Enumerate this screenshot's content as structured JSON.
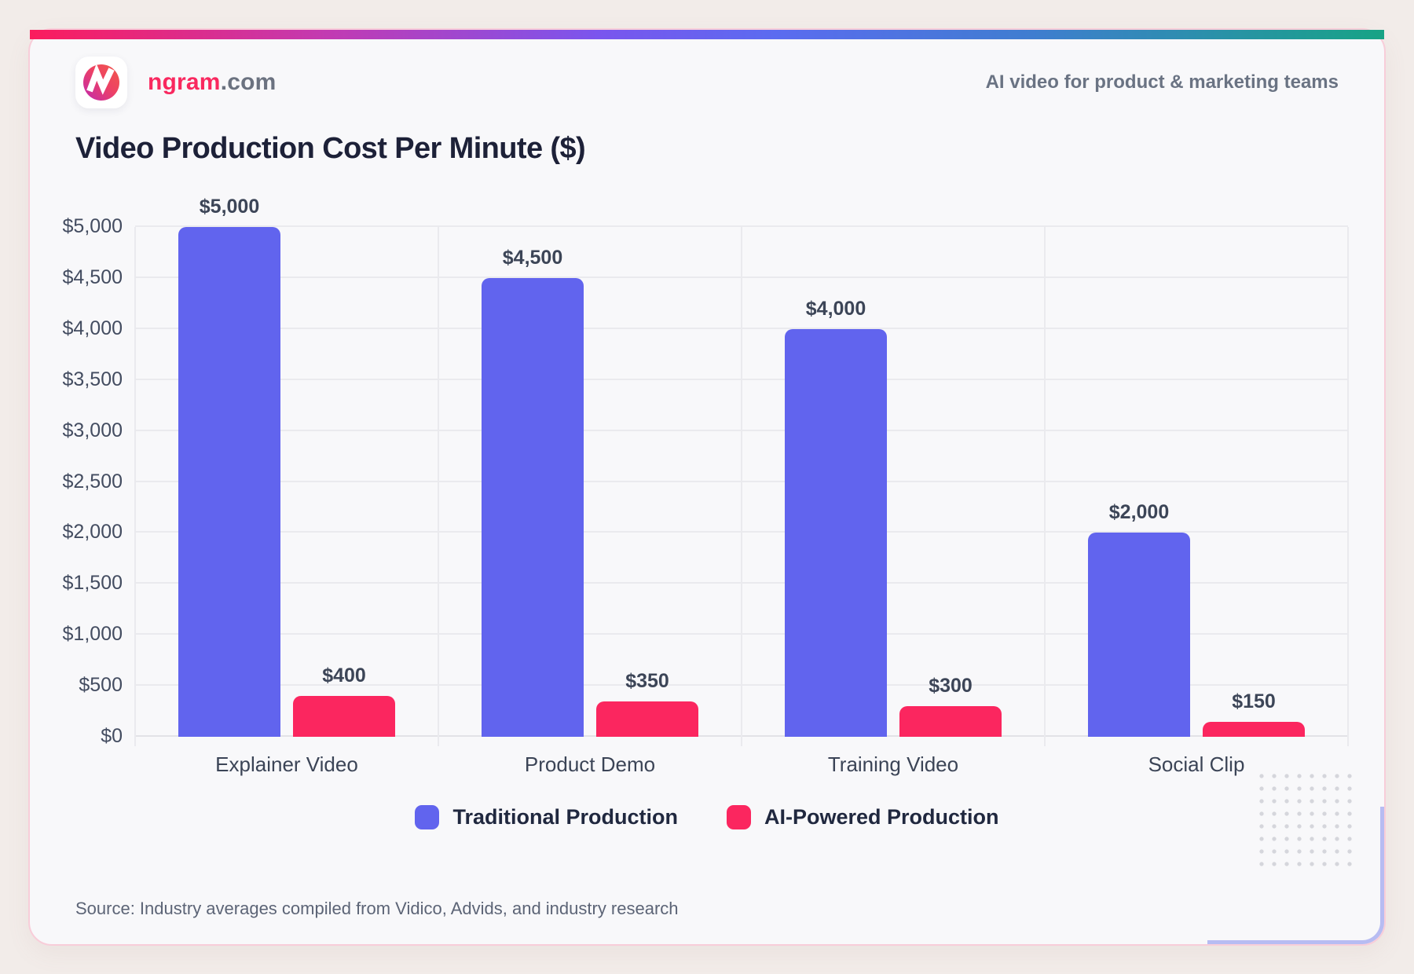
{
  "brand": {
    "name_primary": "ngram",
    "name_suffix": ".com",
    "tagline": "AI video for product & marketing teams"
  },
  "title": "Video Production Cost Per Minute ($)",
  "source": "Source: Industry averages compiled from Vidico, Advids, and industry research",
  "colors": {
    "traditional": "#6164ee",
    "ai_powered": "#fb265f",
    "title_text": "#1d2138",
    "brand_pink": "#f9285f",
    "card_background": "#f8f8fa",
    "page_background": "#f2ece9",
    "gridline": "#eaeaee"
  },
  "chart_data": {
    "type": "bar",
    "title": "Video Production Cost Per Minute ($)",
    "categories": [
      "Explainer Video",
      "Product Demo",
      "Training Video",
      "Social Clip"
    ],
    "series": [
      {
        "name": "Traditional Production",
        "color": "#6164ee",
        "values": [
          5000,
          4500,
          4000,
          2000
        ],
        "labels": [
          "$5,000",
          "$4,500",
          "$4,000",
          "$2,000"
        ]
      },
      {
        "name": "AI-Powered Production",
        "color": "#fb265f",
        "values": [
          400,
          350,
          300,
          150
        ],
        "labels": [
          "$400",
          "$350",
          "$300",
          "$150"
        ]
      }
    ],
    "ylim": [
      0,
      5000
    ],
    "y_tick_step": 500,
    "y_ticks": [
      "$0",
      "$500",
      "$1,000",
      "$1,500",
      "$2,000",
      "$2,500",
      "$3,000",
      "$3,500",
      "$4,000",
      "$4,500",
      "$5,000"
    ],
    "grid": true,
    "legend_position": "bottom"
  }
}
